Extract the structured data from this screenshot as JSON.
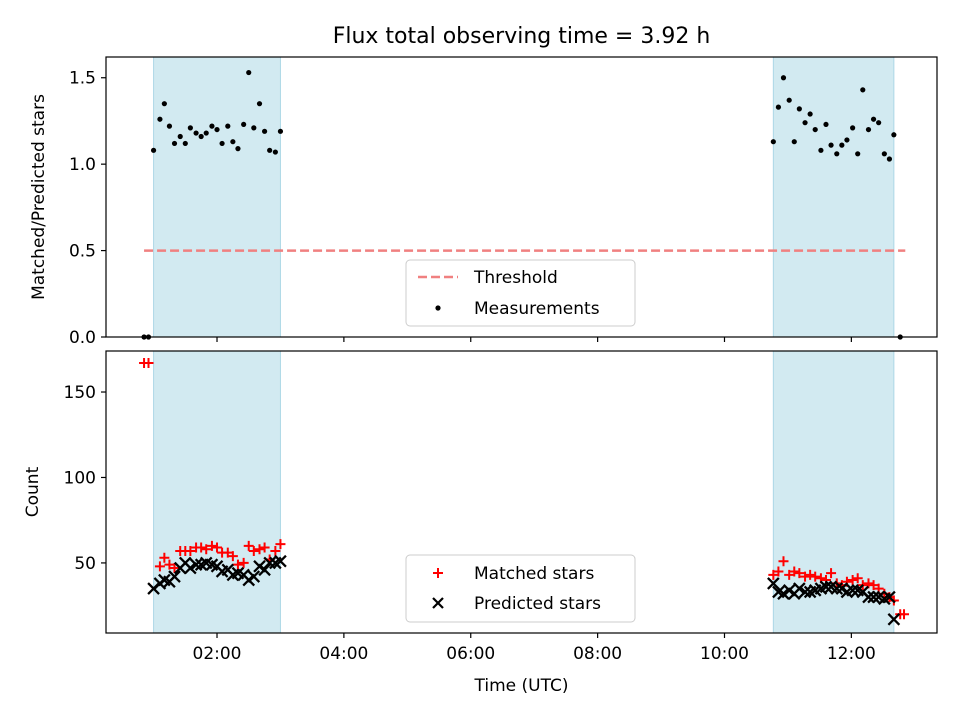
{
  "chart_data": {
    "title": "Flux total observing time = 3.92 h",
    "xlabel": "Time (UTC)",
    "x_units": "hours (UTC)",
    "xlim": [
      0.25,
      13.35
    ],
    "xticks": [
      {
        "value": 2,
        "label": "02:00"
      },
      {
        "value": 4,
        "label": "04:00"
      },
      {
        "value": 6,
        "label": "06:00"
      },
      {
        "value": 8,
        "label": "08:00"
      },
      {
        "value": 10,
        "label": "10:00"
      },
      {
        "value": 12,
        "label": "12:00"
      }
    ],
    "shaded_intervals": [
      [
        1.0,
        3.0
      ],
      [
        10.77,
        12.67
      ]
    ],
    "shade_color": "#add8e6",
    "top_panel": {
      "type": "scatter",
      "ylabel": "Matched/Predicted stars",
      "ylim": [
        0,
        1.62
      ],
      "yticks": [
        {
          "value": 0.0,
          "label": "0.0"
        },
        {
          "value": 0.5,
          "label": "0.5"
        },
        {
          "value": 1.0,
          "label": "1.0"
        },
        {
          "value": 1.5,
          "label": "1.5"
        }
      ],
      "threshold": {
        "name": "Threshold",
        "value": 0.5,
        "x_start": 0.85,
        "x_end": 12.85,
        "color": "#f08080"
      },
      "measurements": {
        "name": "Measurements",
        "color": "#000000",
        "x": [
          0.85,
          0.92,
          1.0,
          1.1,
          1.17,
          1.25,
          1.33,
          1.42,
          1.5,
          1.58,
          1.67,
          1.75,
          1.83,
          1.92,
          2.0,
          2.08,
          2.17,
          2.25,
          2.33,
          2.42,
          2.5,
          2.58,
          2.67,
          2.75,
          2.83,
          2.92,
          3.0,
          10.77,
          10.85,
          10.93,
          11.02,
          11.1,
          11.18,
          11.27,
          11.35,
          11.43,
          11.52,
          11.6,
          11.68,
          11.77,
          11.85,
          11.93,
          12.02,
          12.1,
          12.18,
          12.27,
          12.35,
          12.43,
          12.52,
          12.6,
          12.67,
          12.77
        ],
        "y": [
          0.0,
          0.0,
          1.08,
          1.26,
          1.35,
          1.22,
          1.12,
          1.16,
          1.12,
          1.21,
          1.18,
          1.16,
          1.18,
          1.22,
          1.2,
          1.12,
          1.22,
          1.13,
          1.09,
          1.23,
          1.53,
          1.21,
          1.35,
          1.19,
          1.08,
          1.07,
          1.19,
          1.13,
          1.33,
          1.5,
          1.37,
          1.13,
          1.32,
          1.24,
          1.29,
          1.2,
          1.08,
          1.23,
          1.11,
          1.06,
          1.11,
          1.14,
          1.21,
          1.06,
          1.43,
          1.2,
          1.26,
          1.24,
          1.06,
          1.03,
          1.17,
          0.0
        ]
      },
      "legend": {
        "location": "lower-center",
        "entries": [
          "Threshold",
          "Measurements"
        ]
      }
    },
    "bottom_panel": {
      "type": "scatter",
      "ylabel": "Count",
      "ylim": [
        9,
        174
      ],
      "yticks": [
        {
          "value": 50,
          "label": "50"
        },
        {
          "value": 100,
          "label": "100"
        },
        {
          "value": 150,
          "label": "150"
        }
      ],
      "series": [
        {
          "name": "Matched stars",
          "marker": "plus",
          "color": "#ff0000",
          "x": [
            0.85,
            0.92,
            1.1,
            1.17,
            1.25,
            1.33,
            1.42,
            1.5,
            1.58,
            1.67,
            1.75,
            1.83,
            1.92,
            2.0,
            2.08,
            2.17,
            2.25,
            2.33,
            2.42,
            2.5,
            2.58,
            2.67,
            2.75,
            2.83,
            2.92,
            3.0,
            10.77,
            10.85,
            10.93,
            11.02,
            11.1,
            11.18,
            11.27,
            11.35,
            11.43,
            11.52,
            11.6,
            11.68,
            11.77,
            11.85,
            11.93,
            12.02,
            12.1,
            12.18,
            12.27,
            12.35,
            12.43,
            12.52,
            12.6,
            12.67,
            12.77,
            12.83
          ],
          "y": [
            167,
            167,
            48,
            53,
            49,
            47,
            57,
            57,
            57,
            59,
            59,
            58,
            60,
            59,
            56,
            56,
            54,
            49,
            50,
            60,
            57,
            58,
            59,
            52,
            57,
            61,
            43,
            45,
            51,
            43,
            45,
            44,
            42,
            43,
            42,
            41,
            40,
            44,
            38,
            37,
            39,
            40,
            41,
            37,
            38,
            37,
            35,
            32,
            30,
            28,
            20,
            20
          ]
        },
        {
          "name": "Predicted stars",
          "marker": "x",
          "color": "#000000",
          "x": [
            1.0,
            1.1,
            1.17,
            1.25,
            1.33,
            1.42,
            1.5,
            1.58,
            1.67,
            1.75,
            1.83,
            1.92,
            2.0,
            2.08,
            2.17,
            2.25,
            2.33,
            2.42,
            2.5,
            2.58,
            2.67,
            2.75,
            2.83,
            2.92,
            3.0,
            10.77,
            10.85,
            10.93,
            11.02,
            11.1,
            11.18,
            11.27,
            11.35,
            11.43,
            11.52,
            11.6,
            11.68,
            11.77,
            11.85,
            11.93,
            12.02,
            12.1,
            12.18,
            12.27,
            12.35,
            12.43,
            12.52,
            12.6,
            12.67
          ],
          "y": [
            35,
            38,
            40,
            39,
            42,
            47,
            50,
            47,
            49,
            49,
            50,
            49,
            48,
            45,
            46,
            43,
            44,
            43,
            40,
            42,
            48,
            46,
            50,
            50,
            51,
            38,
            33,
            32,
            34,
            32,
            35,
            33,
            33,
            34,
            35,
            36,
            36,
            35,
            35,
            33,
            34,
            34,
            33,
            30,
            30,
            30,
            29,
            30,
            17
          ]
        }
      ],
      "legend": {
        "location": "lower-center",
        "entries": [
          "Matched stars",
          "Predicted stars"
        ]
      }
    }
  }
}
